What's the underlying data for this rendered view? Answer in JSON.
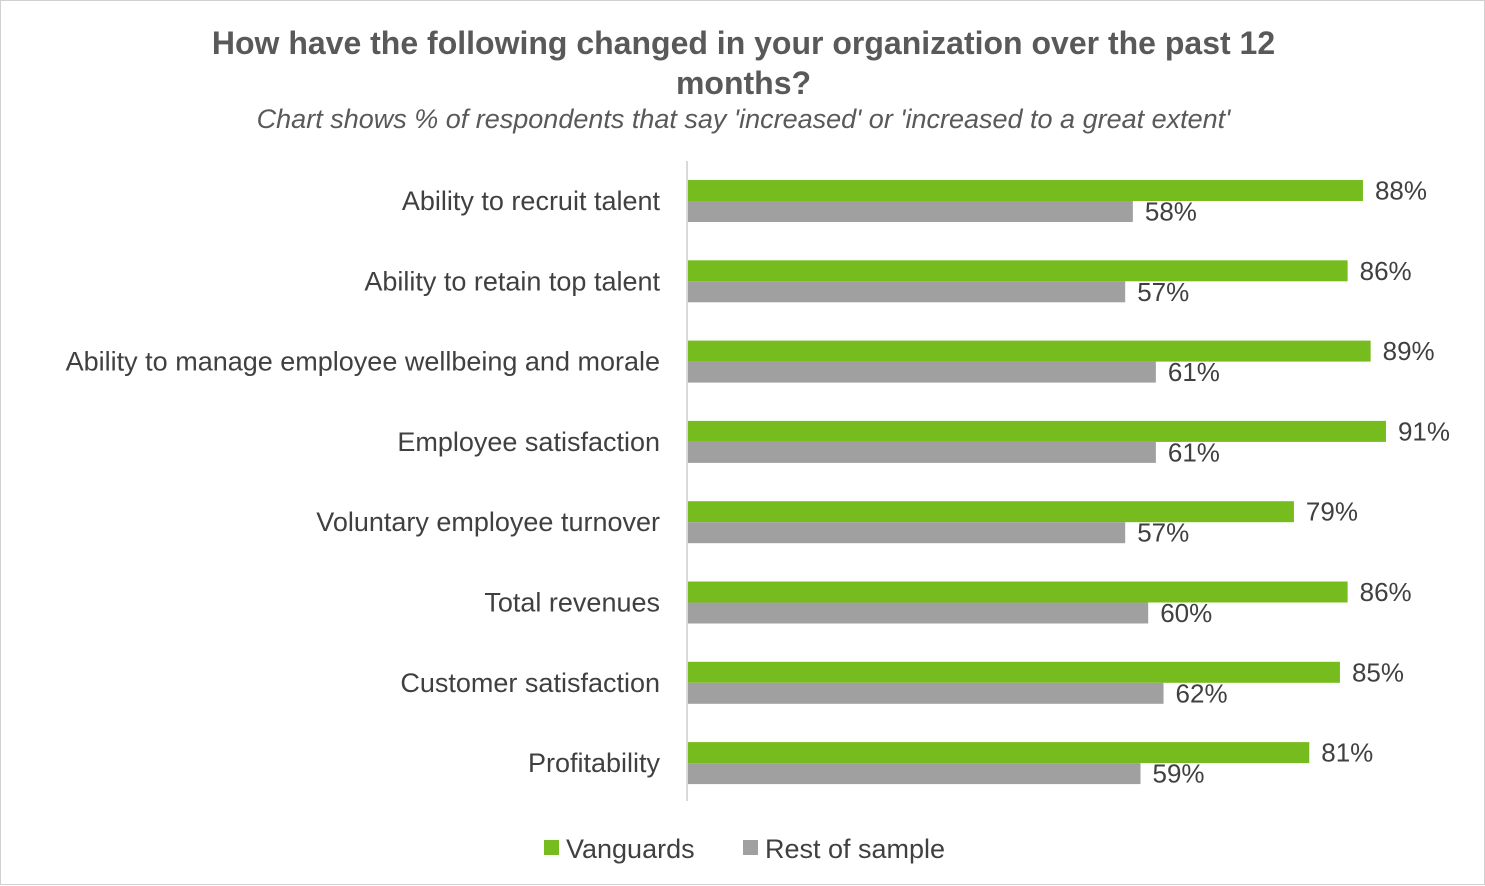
{
  "chart_data": {
    "type": "bar",
    "orientation": "horizontal",
    "title": "How have the following changed in your organization over the past 12 months?",
    "subtitle": "Chart shows % of respondents that say 'increased' or 'increased to a great extent'",
    "categories": [
      "Ability to recruit talent",
      "Ability to retain top talent",
      "Ability to manage employee wellbeing and morale",
      "Employee satisfaction",
      "Voluntary employee turnover",
      "Total revenues",
      "Customer satisfaction",
      "Profitability"
    ],
    "series": [
      {
        "name": "Vanguards",
        "color": "#77bc1f",
        "values": [
          88,
          86,
          89,
          91,
          79,
          86,
          85,
          81
        ]
      },
      {
        "name": "Rest of sample",
        "color": "#a0a0a0",
        "values": [
          58,
          57,
          61,
          61,
          57,
          60,
          62,
          59
        ]
      }
    ],
    "value_suffix": "%",
    "xlim": [
      0,
      100
    ],
    "grid": false,
    "legend_position": "bottom"
  }
}
